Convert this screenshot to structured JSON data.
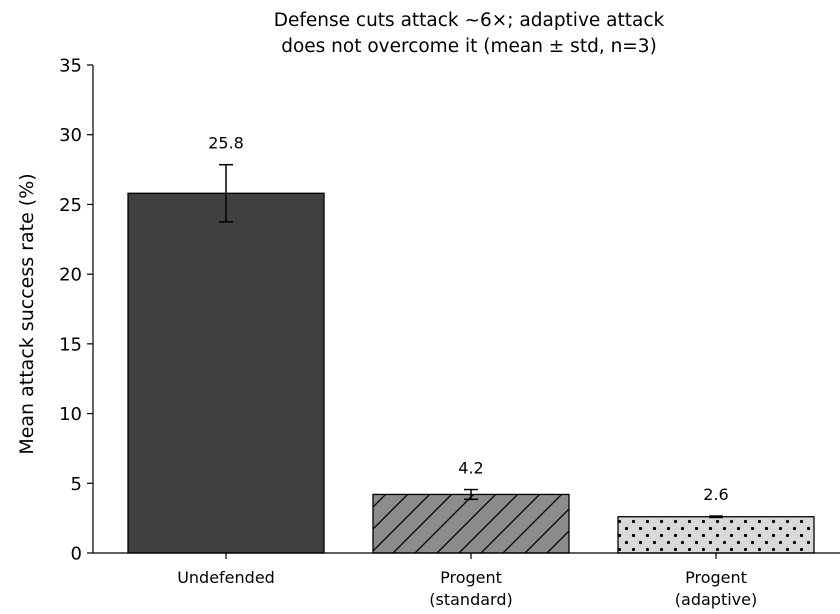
{
  "chart_data": {
    "type": "bar",
    "title": [
      "Defense cuts attack ~6×; adaptive attack",
      "does not overcome it (mean ± std, n=3)"
    ],
    "xlabel": "",
    "ylabel": "Mean attack success rate (%)",
    "ylim": [
      0,
      35
    ],
    "yticks": [
      0,
      5,
      10,
      15,
      20,
      25,
      30,
      35
    ],
    "grid": false,
    "categories": [
      [
        "Undefended"
      ],
      [
        "Progent",
        "(standard)"
      ],
      [
        "Progent",
        "(adaptive)"
      ]
    ],
    "values": [
      25.8,
      4.2,
      2.6
    ],
    "errors": [
      2.05,
      0.35,
      0.05
    ],
    "value_labels": [
      "25.8",
      "4.2",
      "2.6"
    ],
    "bar_styles": [
      {
        "fill": "#404040",
        "pattern": "none"
      },
      {
        "fill": "#8c8c8c",
        "pattern": "hatch"
      },
      {
        "fill": "#d9d9d9",
        "pattern": "dots"
      }
    ]
  }
}
